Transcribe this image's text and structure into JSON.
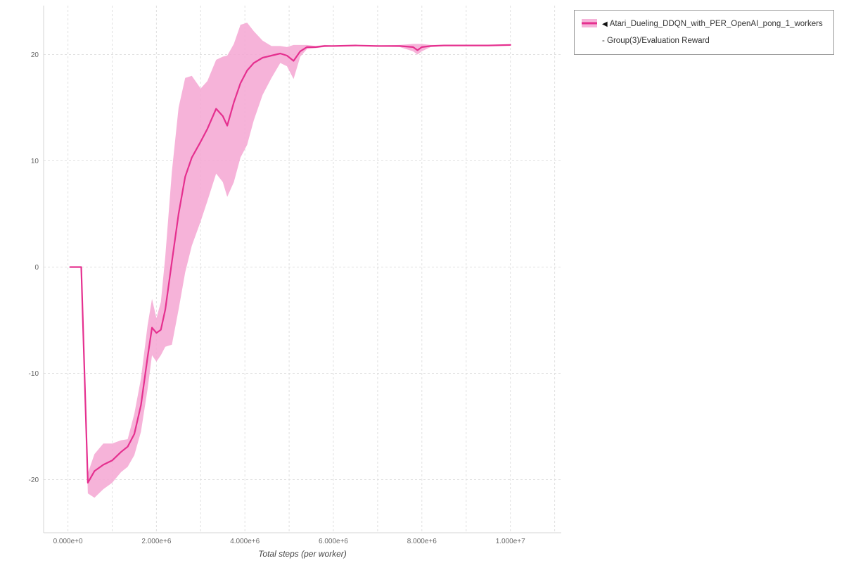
{
  "page": {
    "background": "#ffffff"
  },
  "chart_data": {
    "type": "line",
    "title": "",
    "xlabel": "Total steps (per worker)",
    "ylabel": "",
    "grid": true,
    "xlim": [
      -550000,
      11150000
    ],
    "ylim": [
      -25,
      24.6
    ],
    "x_grid_every": 1000000,
    "x_grid_max": 11000000,
    "x_ticks": [
      {
        "value": 0,
        "label": "0.000e+0"
      },
      {
        "value": 2000000,
        "label": "2.000e+6"
      },
      {
        "value": 4000000,
        "label": "4.000e+6"
      },
      {
        "value": 6000000,
        "label": "6.000e+6"
      },
      {
        "value": 8000000,
        "label": "8.000e+6"
      },
      {
        "value": 10000000,
        "label": "1.000e+7"
      }
    ],
    "y_ticks": [
      {
        "value": -20,
        "label": "-20"
      },
      {
        "value": -10,
        "label": "-10"
      },
      {
        "value": 0,
        "label": "0"
      },
      {
        "value": 10,
        "label": "10"
      },
      {
        "value": 20,
        "label": "20"
      }
    ],
    "legend": {
      "position": "top-right-outside",
      "marker": "◀",
      "label": "Atari_Dueling_DDQN_with_PER_OpenAI_pong_1_workers - Group(3)/Evaluation Reward"
    },
    "colors": {
      "line": "#e5308f",
      "band": "#f5a6d2",
      "grid": "#e0e0e0",
      "axis": "#d6d6d6",
      "tick_text": "#666666"
    },
    "series": [
      {
        "name": "Atari_Dueling_DDQN_with_PER_OpenAI_pong_1_workers - Group(3)/Evaluation Reward",
        "x": [
          50000,
          300000,
          450000,
          600000,
          800000,
          1000000,
          1200000,
          1350000,
          1500000,
          1650000,
          1800000,
          1900000,
          2000000,
          2100000,
          2200000,
          2350000,
          2500000,
          2650000,
          2800000,
          3000000,
          3150000,
          3350000,
          3500000,
          3600000,
          3750000,
          3900000,
          4050000,
          4200000,
          4400000,
          4600000,
          4800000,
          4950000,
          5100000,
          5250000,
          5400000,
          5600000,
          5800000,
          6000000,
          6500000,
          7000000,
          7500000,
          7800000,
          7900000,
          8000000,
          8200000,
          8500000,
          9000000,
          9500000,
          10000000
        ],
        "mean": [
          0,
          0,
          -20.3,
          -19.2,
          -18.6,
          -18.2,
          -17.4,
          -16.9,
          -15.7,
          -13.0,
          -8.5,
          -5.7,
          -6.2,
          -5.9,
          -4.0,
          0.5,
          5.0,
          8.5,
          10.3,
          11.8,
          13.0,
          14.9,
          14.2,
          13.3,
          15.5,
          17.3,
          18.5,
          19.2,
          19.7,
          19.9,
          20.1,
          19.9,
          19.4,
          20.3,
          20.7,
          20.7,
          20.8,
          20.8,
          20.85,
          20.8,
          20.8,
          20.7,
          20.4,
          20.7,
          20.8,
          20.85,
          20.85,
          20.85,
          20.9
        ],
        "lower": [
          0,
          0,
          -21.3,
          -21.7,
          -20.9,
          -20.3,
          -19.3,
          -18.8,
          -17.7,
          -15.5,
          -11.5,
          -8.3,
          -8.9,
          -8.3,
          -7.5,
          -7.3,
          -4.0,
          -0.5,
          2.0,
          4.3,
          6.2,
          8.8,
          8.0,
          6.6,
          8.0,
          10.3,
          11.5,
          13.8,
          16.2,
          17.8,
          19.2,
          18.9,
          17.7,
          19.8,
          20.5,
          20.6,
          20.7,
          20.75,
          20.8,
          20.75,
          20.7,
          20.3,
          20.0,
          20.3,
          20.7,
          20.8,
          20.8,
          20.8,
          20.85
        ],
        "upper": [
          0,
          0,
          -19.4,
          -17.6,
          -16.6,
          -16.6,
          -16.3,
          -16.2,
          -13.8,
          -10.5,
          -5.5,
          -3.0,
          -4.8,
          -3.3,
          1.0,
          9.0,
          15.0,
          17.8,
          18.0,
          16.8,
          17.5,
          19.5,
          19.8,
          19.9,
          21.0,
          22.8,
          23.0,
          22.2,
          21.3,
          20.8,
          20.8,
          20.7,
          20.9,
          20.9,
          20.9,
          20.8,
          20.9,
          20.85,
          20.9,
          20.85,
          20.9,
          21.0,
          21.0,
          21.0,
          20.9,
          20.9,
          20.9,
          20.9,
          20.95
        ]
      }
    ]
  }
}
